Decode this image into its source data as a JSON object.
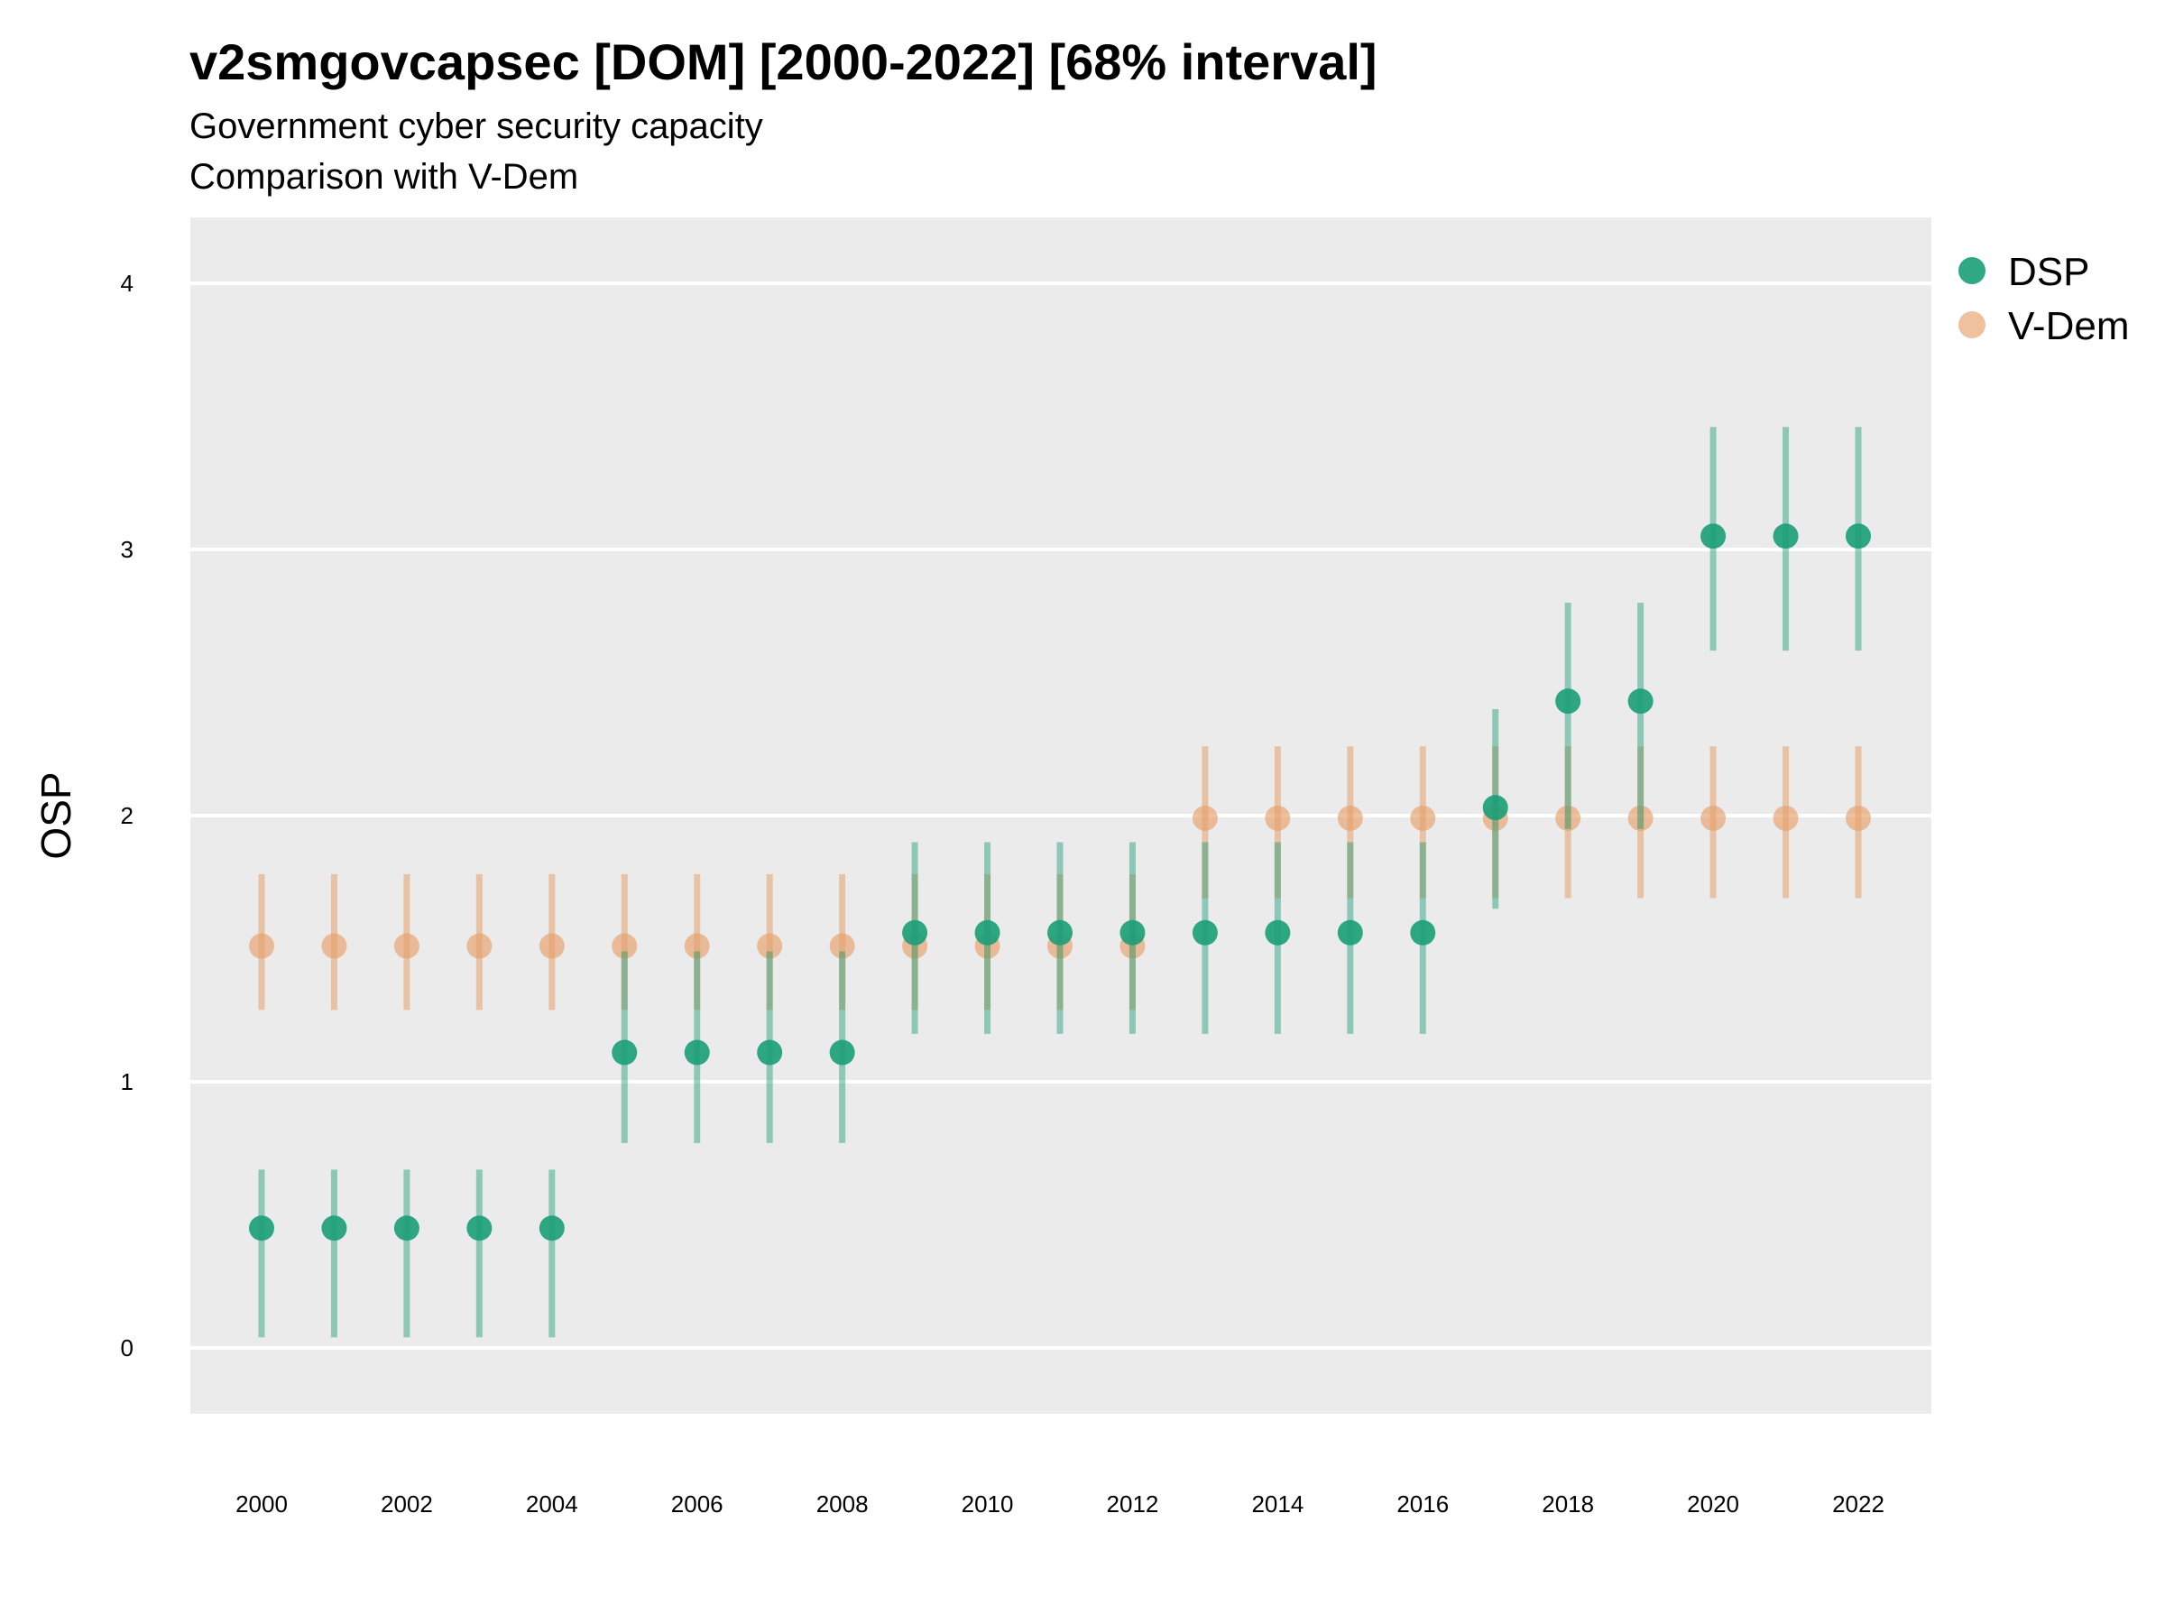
{
  "title": "v2smgovcapsec [DOM] [2000-2022] [68% interval]",
  "subtitle": "Government cyber security capacity",
  "subtitle2": "Comparison with V-Dem",
  "colors": {
    "panel": "#ebebeb",
    "grid": "#ffffff",
    "dsp": "#1b9e77",
    "vdem": "#e6a06a"
  },
  "chart_data": {
    "type": "scatter",
    "title": "v2smgovcapsec [DOM] [2000-2022] [68% interval]",
    "subtitle": "Government cyber security capacity",
    "ylabel": "OSP",
    "xlabel": "",
    "ylim": [
      -0.25,
      4.25
    ],
    "yticks": [
      0,
      1,
      2,
      3,
      4
    ],
    "xticks": [
      2000,
      2002,
      2004,
      2006,
      2008,
      2010,
      2012,
      2014,
      2016,
      2018,
      2020,
      2022
    ],
    "grid": true,
    "legend": "right",
    "x": [
      2000,
      2001,
      2002,
      2003,
      2004,
      2005,
      2006,
      2007,
      2008,
      2009,
      2010,
      2011,
      2012,
      2013,
      2014,
      2015,
      2016,
      2017,
      2018,
      2019,
      2020,
      2021,
      2022
    ],
    "series": [
      {
        "name": "DSP",
        "values": [
          0.45,
          0.45,
          0.45,
          0.45,
          0.45,
          1.11,
          1.11,
          1.11,
          1.11,
          1.56,
          1.56,
          1.56,
          1.56,
          1.56,
          1.56,
          1.56,
          1.56,
          2.03,
          2.43,
          2.43,
          3.05,
          3.05,
          3.05
        ],
        "lower": [
          0.04,
          0.04,
          0.04,
          0.04,
          0.04,
          0.77,
          0.77,
          0.77,
          0.77,
          1.18,
          1.18,
          1.18,
          1.18,
          1.18,
          1.18,
          1.18,
          1.18,
          1.65,
          1.95,
          1.95,
          2.62,
          2.62,
          2.62
        ],
        "upper": [
          0.67,
          0.67,
          0.67,
          0.67,
          0.67,
          1.49,
          1.49,
          1.49,
          1.49,
          1.9,
          1.9,
          1.9,
          1.9,
          1.9,
          1.9,
          1.9,
          1.9,
          2.4,
          2.8,
          2.8,
          3.46,
          3.46,
          3.46
        ]
      },
      {
        "name": "V-Dem",
        "values": [
          1.51,
          1.51,
          1.51,
          1.51,
          1.51,
          1.51,
          1.51,
          1.51,
          1.51,
          1.51,
          1.51,
          1.51,
          1.51,
          1.99,
          1.99,
          1.99,
          1.99,
          1.99,
          1.99,
          1.99,
          1.99,
          1.99,
          1.99
        ],
        "lower": [
          1.27,
          1.27,
          1.27,
          1.27,
          1.27,
          1.27,
          1.27,
          1.27,
          1.27,
          1.27,
          1.27,
          1.27,
          1.27,
          1.69,
          1.69,
          1.69,
          1.69,
          1.69,
          1.69,
          1.69,
          1.69,
          1.69,
          1.69
        ],
        "upper": [
          1.78,
          1.78,
          1.78,
          1.78,
          1.78,
          1.78,
          1.78,
          1.78,
          1.78,
          1.78,
          1.78,
          1.78,
          1.78,
          2.26,
          2.26,
          2.26,
          2.26,
          2.26,
          2.26,
          2.26,
          2.26,
          2.26,
          2.26
        ]
      }
    ]
  }
}
